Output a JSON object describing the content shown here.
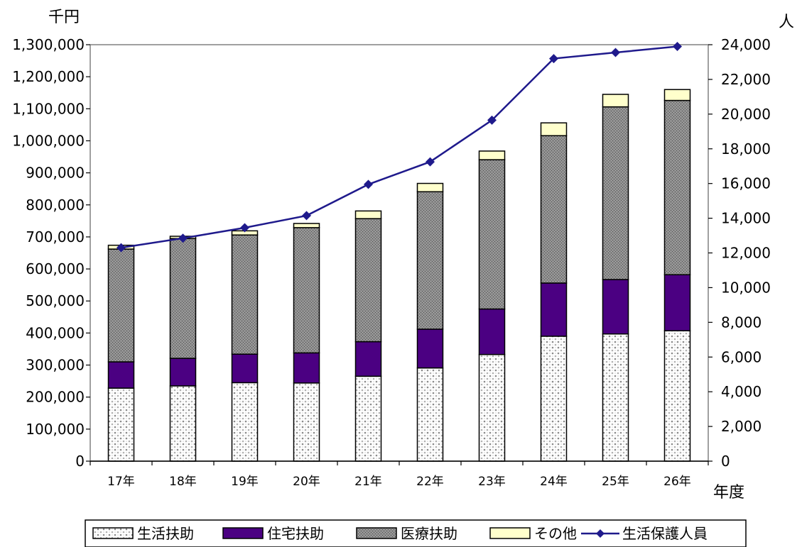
{
  "chart_data": {
    "type": "bar",
    "subtype": "stacked bar with line on secondary axis",
    "categories": [
      "17年",
      "18年",
      "19年",
      "20年",
      "21年",
      "22年",
      "23年",
      "24年",
      "25年",
      "26年"
    ],
    "series": [
      {
        "name": "生活扶助",
        "type": "bar",
        "axis": "left",
        "pattern": "dotted",
        "color": "#d9d9d9",
        "values": [
          228000,
          235000,
          245000,
          244000,
          265000,
          291000,
          333000,
          390000,
          397000,
          407000
        ]
      },
      {
        "name": "住宅扶助",
        "type": "bar",
        "axis": "left",
        "color": "#4b0082",
        "values": [
          82000,
          86000,
          89000,
          94000,
          108000,
          121000,
          142000,
          166000,
          170000,
          175000
        ]
      },
      {
        "name": "医療扶助",
        "type": "bar",
        "axis": "left",
        "pattern": "dark grey texture",
        "color": "#808080",
        "values": [
          352000,
          374000,
          372000,
          391000,
          384000,
          429000,
          466000,
          460000,
          539000,
          544000
        ]
      },
      {
        "name": "その他",
        "type": "bar",
        "axis": "left",
        "color": "#ffffcc",
        "values": [
          12000,
          7000,
          13000,
          13000,
          24000,
          26000,
          27000,
          40000,
          39000,
          34000
        ]
      },
      {
        "name": "生活保護人員",
        "type": "line",
        "axis": "right",
        "marker": "diamond",
        "color": "#1f1a8c",
        "values": [
          12300,
          12850,
          13450,
          14150,
          15950,
          17250,
          19650,
          23200,
          23550,
          23900
        ]
      }
    ],
    "y_left": {
      "unit": "千円",
      "range": [
        0,
        1300000
      ],
      "ticks": [
        0,
        100000,
        200000,
        300000,
        400000,
        500000,
        600000,
        700000,
        800000,
        900000,
        1000000,
        1100000,
        1200000,
        1300000
      ],
      "tick_labels": [
        "0",
        "100,000",
        "200,000",
        "300,000",
        "400,000",
        "500,000",
        "600,000",
        "700,000",
        "800,000",
        "900,000",
        "1,000,000",
        "1,100,000",
        "1,200,000",
        "1,300,000"
      ]
    },
    "y_right": {
      "unit": "人",
      "range": [
        0,
        24000
      ],
      "ticks": [
        0,
        2000,
        4000,
        6000,
        8000,
        10000,
        12000,
        14000,
        16000,
        18000,
        20000,
        22000,
        24000
      ],
      "tick_labels": [
        "0",
        "2,000",
        "4,000",
        "6,000",
        "8,000",
        "10,000",
        "12,000",
        "14,000",
        "16,000",
        "18,000",
        "20,000",
        "22,000",
        "24,000"
      ]
    },
    "x_unit": "年度",
    "grid": false,
    "legend_position": "bottom"
  }
}
